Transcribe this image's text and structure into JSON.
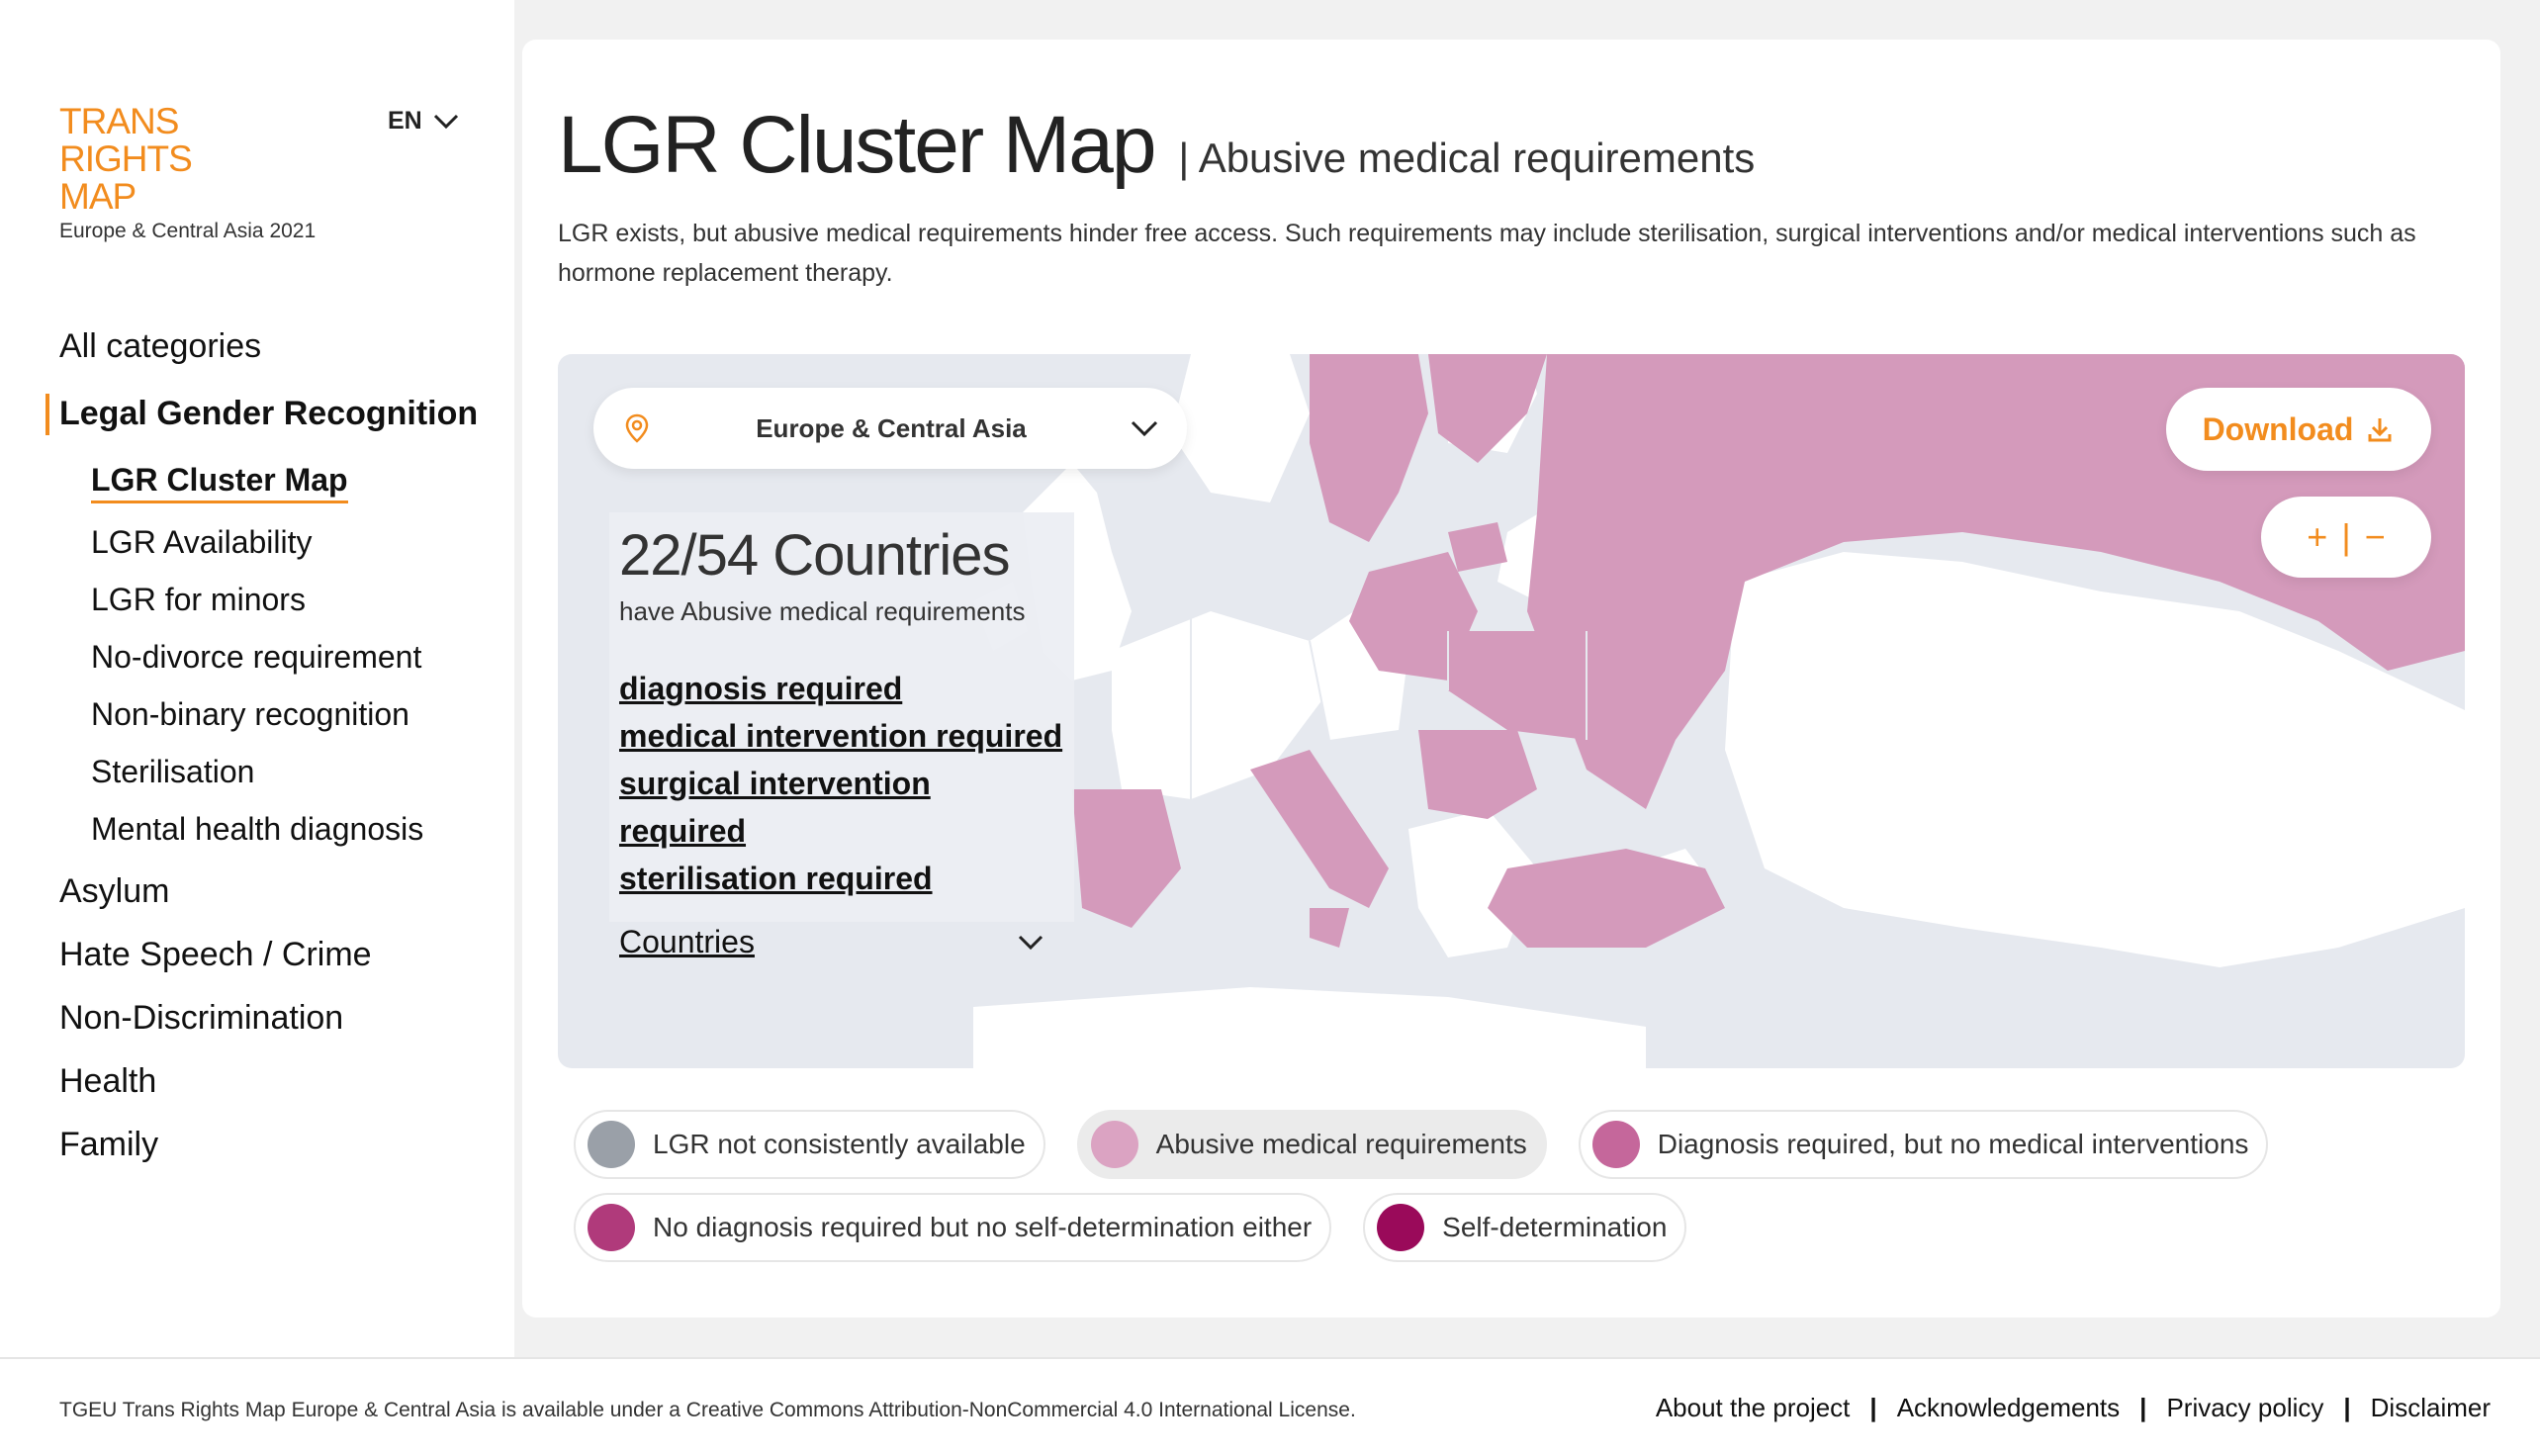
{
  "brand": {
    "logo_lines": [
      "TRANS",
      "RIGHTS",
      "MAP"
    ],
    "subtitle": "Europe & Central Asia 2021",
    "language": "EN"
  },
  "nav": {
    "all": "All categories",
    "active_section": "Legal Gender Recognition",
    "sub_items": [
      "LGR Cluster Map",
      "LGR Availability",
      "LGR for minors",
      "No-divorce requirement",
      "Non-binary recognition",
      "Sterilisation",
      "Mental health diagnosis"
    ],
    "other_sections": [
      "Asylum",
      "Hate Speech / Crime",
      "Non-Discrimination",
      "Health",
      "Family"
    ]
  },
  "header": {
    "title": "LGR Cluster Map",
    "subtitle": "Abusive medical requirements",
    "description": "LGR exists, but abusive medical requirements hinder free access. Such requirements may include sterilisation, surgical interventions and/or medical interventions such as hormone replacement therapy."
  },
  "map": {
    "region": "Europe & Central Asia",
    "download_label": "Download",
    "zoom_in": "+",
    "zoom_sep": "|",
    "zoom_out": "−",
    "count_num": "22",
    "count_den": "/54 Countries",
    "count_sub": "have Abusive medical requirements",
    "links": [
      "diagnosis required",
      "medical intervention required",
      "surgical intervention required",
      "sterilisation required"
    ],
    "countries_label": "Countries",
    "colors": {
      "water": "#e6e9ef",
      "land": "#ffffff",
      "highlight": "#d49abb"
    }
  },
  "legend": [
    {
      "label": "LGR not consistently available",
      "color": "#9aa0a8",
      "active": false
    },
    {
      "label": "Abusive medical requirements",
      "color": "#dba3c2",
      "active": true
    },
    {
      "label": "Diagnosis required, but no medical interventions",
      "color": "#c5679b",
      "active": false
    },
    {
      "label": "No diagnosis required but no self-determination either",
      "color": "#b03a7b",
      "active": false
    },
    {
      "label": "Self-determination",
      "color": "#9a0a5a",
      "active": false
    }
  ],
  "footer": {
    "license": "TGEU Trans Rights Map Europe & Central Asia is available under a Creative Commons Attribution-NonCommercial 4.0 International License.",
    "links": [
      "About the project",
      "Acknowledgements",
      "Privacy policy",
      "Disclaimer"
    ],
    "separator": "|"
  }
}
